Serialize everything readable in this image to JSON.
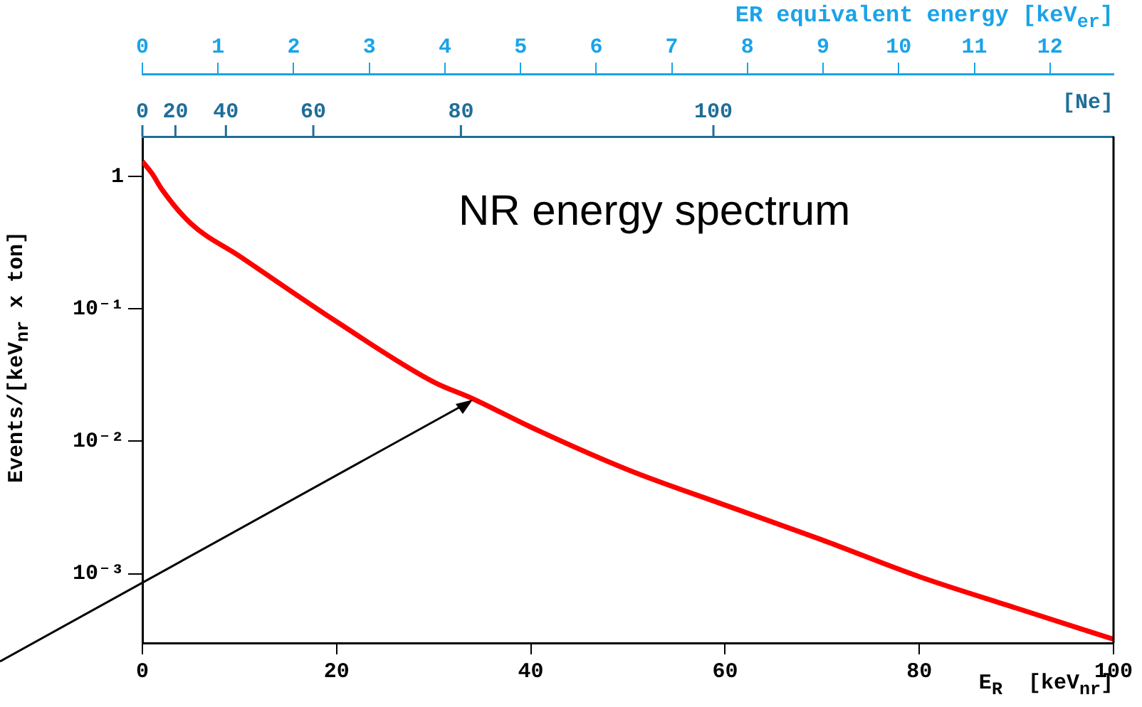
{
  "chart_data": {
    "type": "line",
    "xlabel": "E$_{R}$  [keV$_{nr}$]",
    "ylabel": "Events/[keV$_{nr}$ x ton]",
    "x2label": "ER equivalent energy [keV$_{er}$]",
    "annotations": [
      "NR energy spectrum",
      "[Ne]",
      "0",
      "20",
      "40",
      "60",
      "80",
      "100"
    ],
    "x": [
      0,
      1,
      2,
      5,
      10,
      20,
      30,
      34,
      40,
      50,
      60,
      70,
      80,
      90,
      100
    ],
    "series": [
      {
        "color": "#ff0000",
        "values": [
          1.3,
          1.05,
          0.8,
          0.44,
          0.25,
          0.08,
          0.028,
          0.021,
          0.0128,
          0.0061,
          0.0033,
          0.0018,
          0.00095,
          0.00055,
          0.00032
        ]
      }
    ],
    "xlim": [
      0,
      100
    ],
    "xticks": [
      0,
      20,
      40,
      60,
      80,
      100
    ],
    "x2lim": [
      0,
      12.84
    ],
    "x2ticks": [
      0,
      1,
      2,
      3,
      4,
      5,
      6,
      7,
      8,
      9,
      10,
      11,
      12
    ],
    "ylim": [
      0.0003,
      2
    ],
    "yticks": [
      {
        "value": 0.001,
        "label": "10⁻³"
      },
      {
        "value": 0.01,
        "label": "10⁻²"
      },
      {
        "value": 0.1,
        "label": "10⁻¹"
      },
      1
    ],
    "log": "y"
  }
}
